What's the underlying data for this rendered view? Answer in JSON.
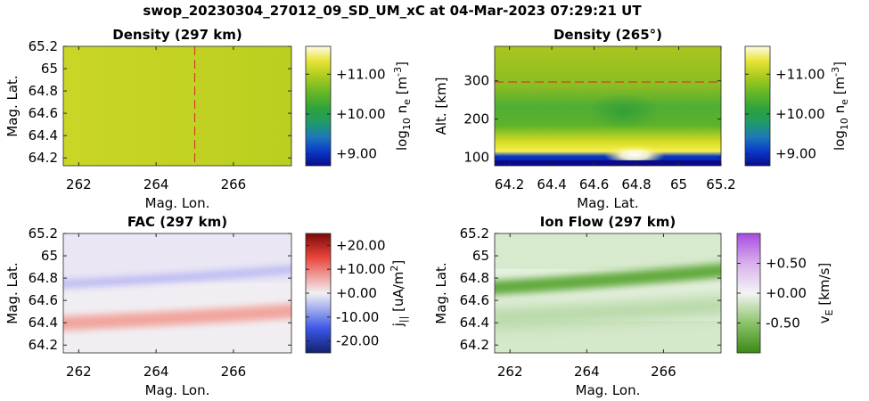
{
  "figure": {
    "title": "swop_20230304_27012_09_SD_UM_xC at 04-Mar-2023 07:29:21 UT"
  },
  "chart_data": [
    {
      "type": "heatmap",
      "title": "Density (297 km)",
      "xlabel": "Mag. Lon.",
      "ylabel": "Mag. Lat.",
      "xlim": [
        261.6,
        267.5
      ],
      "ylim": [
        64.13,
        65.2
      ],
      "xticks": [
        "262",
        "264",
        "266"
      ],
      "yticks": [
        "64.2",
        "64.4",
        "64.6",
        "64.8",
        "65",
        "65.2"
      ],
      "colormap": "density",
      "clim": [
        8.7,
        11.7
      ],
      "colorbar_label": "log10 ne [m-3]",
      "colorbar_ticks": [
        "+9.00",
        "+10.00",
        "+11.00"
      ],
      "description_values": {
        "uniform_level": 11.0
      },
      "overlay": {
        "style": "dashed",
        "color": "#d62728",
        "orientation": "vertical",
        "x": 265.0
      }
    },
    {
      "type": "heatmap",
      "title": "Density (265°)",
      "xlabel": "Mag. Lat.",
      "ylabel": "Alt. [km]",
      "xlim": [
        64.13,
        65.2
      ],
      "ylim": [
        78,
        390
      ],
      "xticks": [
        "64.2",
        "64.4",
        "64.6",
        "64.8",
        "65",
        "65.2"
      ],
      "yticks": [
        "100",
        "200",
        "300"
      ],
      "colormap": "density",
      "clim": [
        8.7,
        11.7
      ],
      "colorbar_label": "log10 ne [m-3]",
      "colorbar_ticks": [
        "+9.00",
        "+10.00",
        "+11.00"
      ],
      "peak": {
        "lat": 64.82,
        "alt": 100,
        "value": 11.7
      },
      "overlay": {
        "style": "dashed",
        "color": "#d62728",
        "orientation": "horizontal",
        "y": 297
      }
    },
    {
      "type": "heatmap",
      "title": "FAC (297 km)",
      "xlabel": "Mag. Lon.",
      "ylabel": "Mag. Lat.",
      "xlim": [
        261.6,
        267.5
      ],
      "ylim": [
        64.13,
        65.2
      ],
      "xticks": [
        "262",
        "264",
        "266"
      ],
      "yticks": [
        "64.2",
        "64.4",
        "64.6",
        "64.8",
        "65",
        "65.2"
      ],
      "colormap": "diverging-blue-red",
      "clim": [
        -25,
        25
      ],
      "colorbar_label": "j|| [uA/m2]",
      "colorbar_ticks": [
        "+20.00",
        "+10.00",
        "+0.00",
        "-10.00",
        "-20.00"
      ],
      "bands": [
        {
          "sign": "negative",
          "value": -4,
          "lat_at_262": 64.75,
          "lat_at_267": 64.87
        },
        {
          "sign": "positive",
          "value": 4,
          "lat_at_262": 64.4,
          "lat_at_267": 64.5
        }
      ]
    },
    {
      "type": "heatmap",
      "title": "Ion Flow (297 km)",
      "xlabel": "Mag. Lon.",
      "ylabel": "Mag. Lat.",
      "xlim": [
        261.6,
        267.5
      ],
      "ylim": [
        64.13,
        65.2
      ],
      "xticks": [
        "262",
        "264",
        "266"
      ],
      "yticks": [
        "64.2",
        "64.4",
        "64.6",
        "64.8",
        "65",
        "65.2"
      ],
      "colormap": "diverging-green-purple",
      "clim": [
        -1.0,
        1.0
      ],
      "colorbar_label": "vE [km/s]",
      "colorbar_ticks": [
        "+0.50",
        "+0.00",
        "-0.50"
      ],
      "bands": [
        {
          "sign": "negative",
          "value": -0.75,
          "lat_at_262": 64.72,
          "lat_at_267": 64.86
        },
        {
          "sign": "negative",
          "value": -0.25,
          "lat_at_262": 64.45,
          "lat_at_267": 64.55
        }
      ]
    }
  ]
}
